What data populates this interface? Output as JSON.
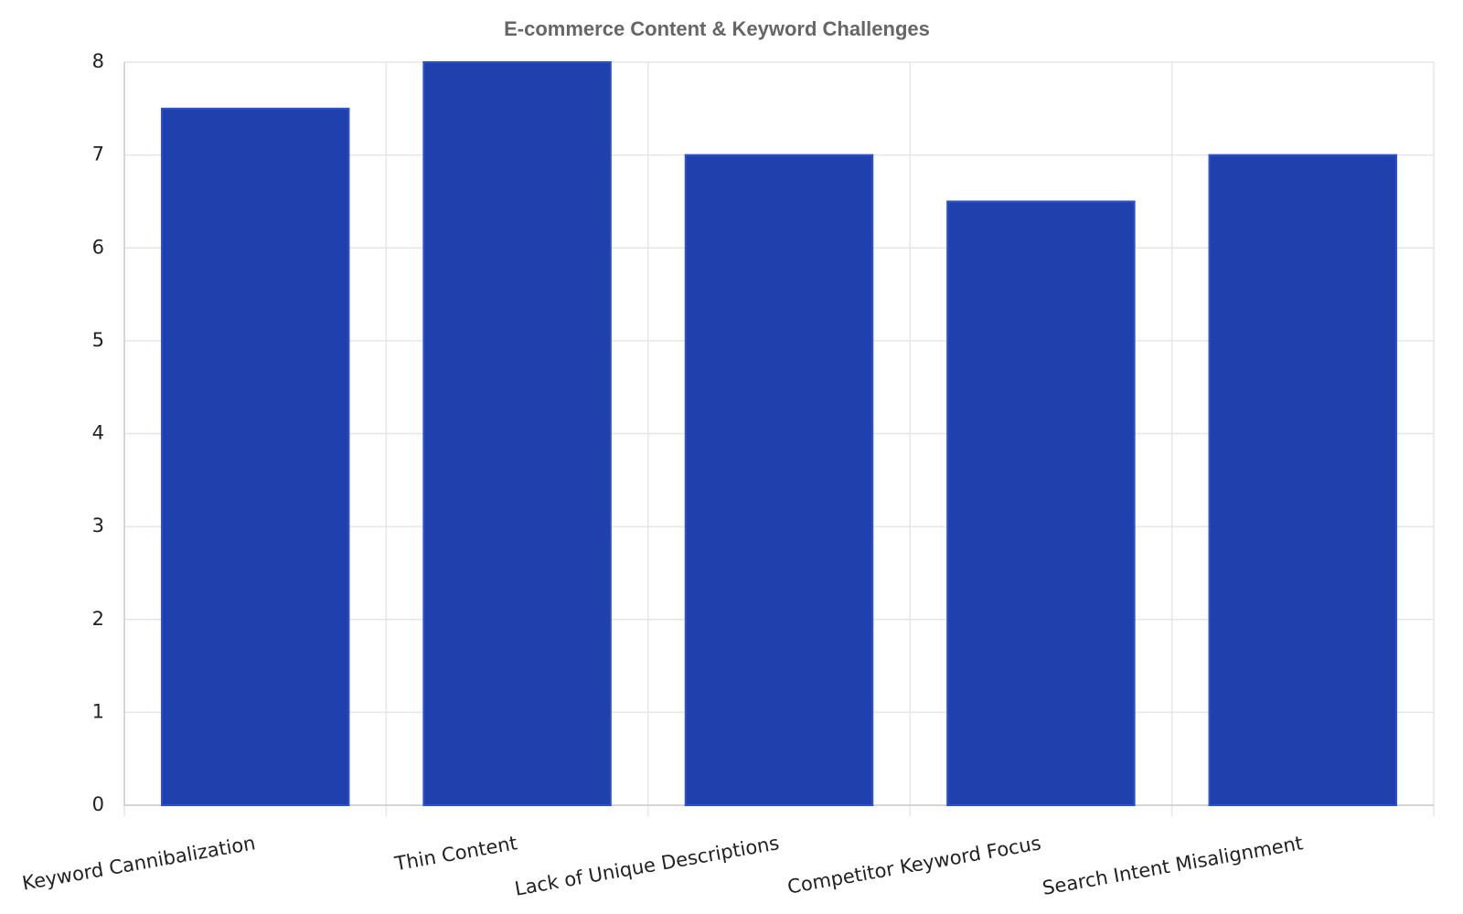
{
  "chart_data": {
    "type": "bar",
    "title": "E-commerce Content & Keyword Challenges",
    "categories": [
      "Keyword Cannibalization",
      "Thin Content",
      "Lack of Unique Descriptions",
      "Competitor Keyword Focus",
      "Search Intent Misalignment"
    ],
    "values": [
      7.5,
      8,
      7,
      6.5,
      7
    ],
    "color": "#1f40ad",
    "ylim": [
      0,
      8
    ],
    "yticks": [
      0,
      1,
      2,
      3,
      4,
      5,
      6,
      7,
      8
    ],
    "grid": true
  }
}
